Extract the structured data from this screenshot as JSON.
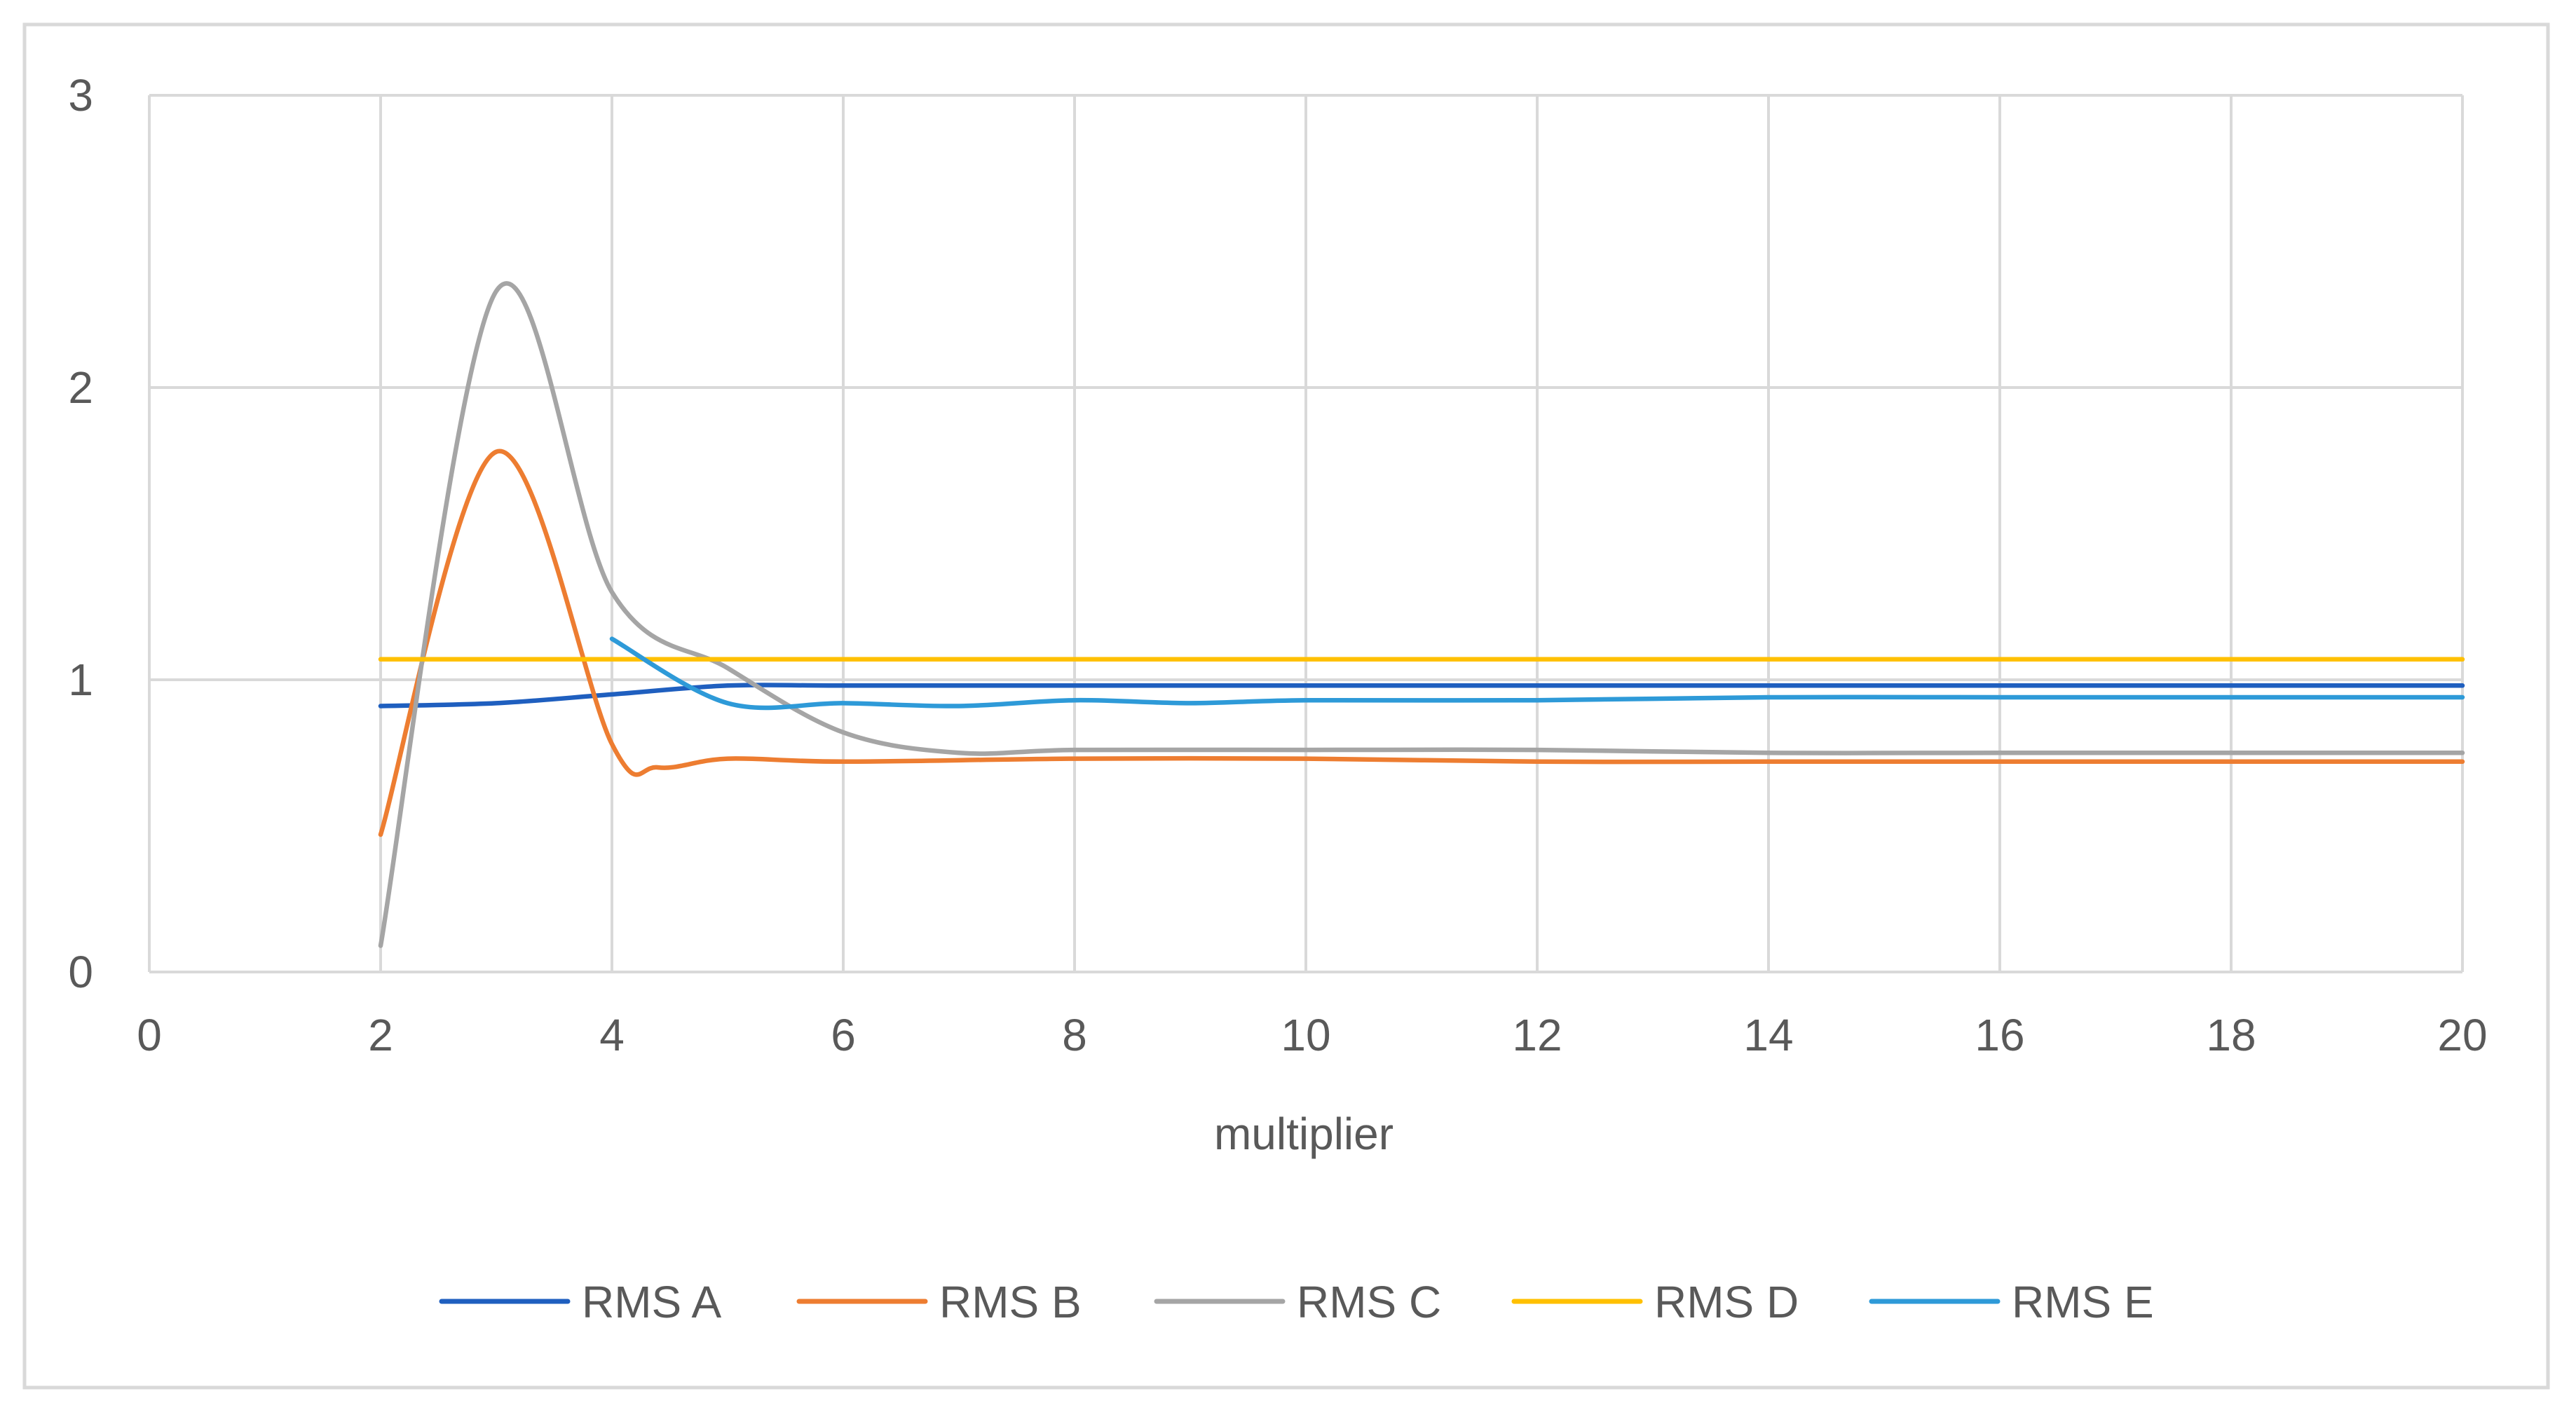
{
  "chart_data": {
    "type": "line",
    "title": "",
    "xlabel": "multiplier",
    "ylabel": "",
    "xlim": [
      0,
      20
    ],
    "ylim": [
      0,
      3
    ],
    "xticks": [
      0,
      2,
      4,
      6,
      8,
      10,
      12,
      14,
      16,
      18,
      20
    ],
    "yticks": [
      0,
      1,
      2,
      3
    ],
    "grid": true,
    "smooth": true,
    "legend_position": "bottom",
    "series": [
      {
        "name": "RMS A",
        "color": "#1F5FBF",
        "x": [
          2,
          3,
          4,
          5,
          6,
          8,
          10,
          12,
          14,
          16,
          18,
          20
        ],
        "y": [
          0.91,
          0.92,
          0.95,
          0.98,
          0.98,
          0.98,
          0.98,
          0.98,
          0.98,
          0.98,
          0.98,
          0.98
        ]
      },
      {
        "name": "RMS B",
        "color": "#ED7D31",
        "x": [
          2,
          3,
          4,
          4.4,
          5,
          6,
          8,
          10,
          12,
          14,
          16,
          18,
          20
        ],
        "y": [
          0.47,
          1.78,
          0.78,
          0.7,
          0.73,
          0.72,
          0.73,
          0.73,
          0.72,
          0.72,
          0.72,
          0.72,
          0.72
        ]
      },
      {
        "name": "RMS C",
        "color": "#A5A5A5",
        "x": [
          2,
          3,
          4,
          5,
          6,
          7,
          8,
          10,
          12,
          14,
          16,
          18,
          20
        ],
        "y": [
          0.09,
          2.33,
          1.3,
          1.04,
          0.82,
          0.75,
          0.76,
          0.76,
          0.76,
          0.75,
          0.75,
          0.75,
          0.75
        ]
      },
      {
        "name": "RMS D",
        "color": "#FFC000",
        "x": [
          2,
          4,
          6,
          8,
          10,
          12,
          14,
          16,
          18,
          20
        ],
        "y": [
          1.07,
          1.07,
          1.07,
          1.07,
          1.07,
          1.07,
          1.07,
          1.07,
          1.07,
          1.07
        ]
      },
      {
        "name": "RMS E",
        "color": "#2E9AD8",
        "x": [
          4,
          5,
          6,
          7,
          8,
          9,
          10,
          12,
          14,
          16,
          18,
          20
        ],
        "y": [
          1.14,
          0.92,
          0.92,
          0.91,
          0.93,
          0.92,
          0.93,
          0.93,
          0.94,
          0.94,
          0.94,
          0.94
        ]
      }
    ]
  }
}
